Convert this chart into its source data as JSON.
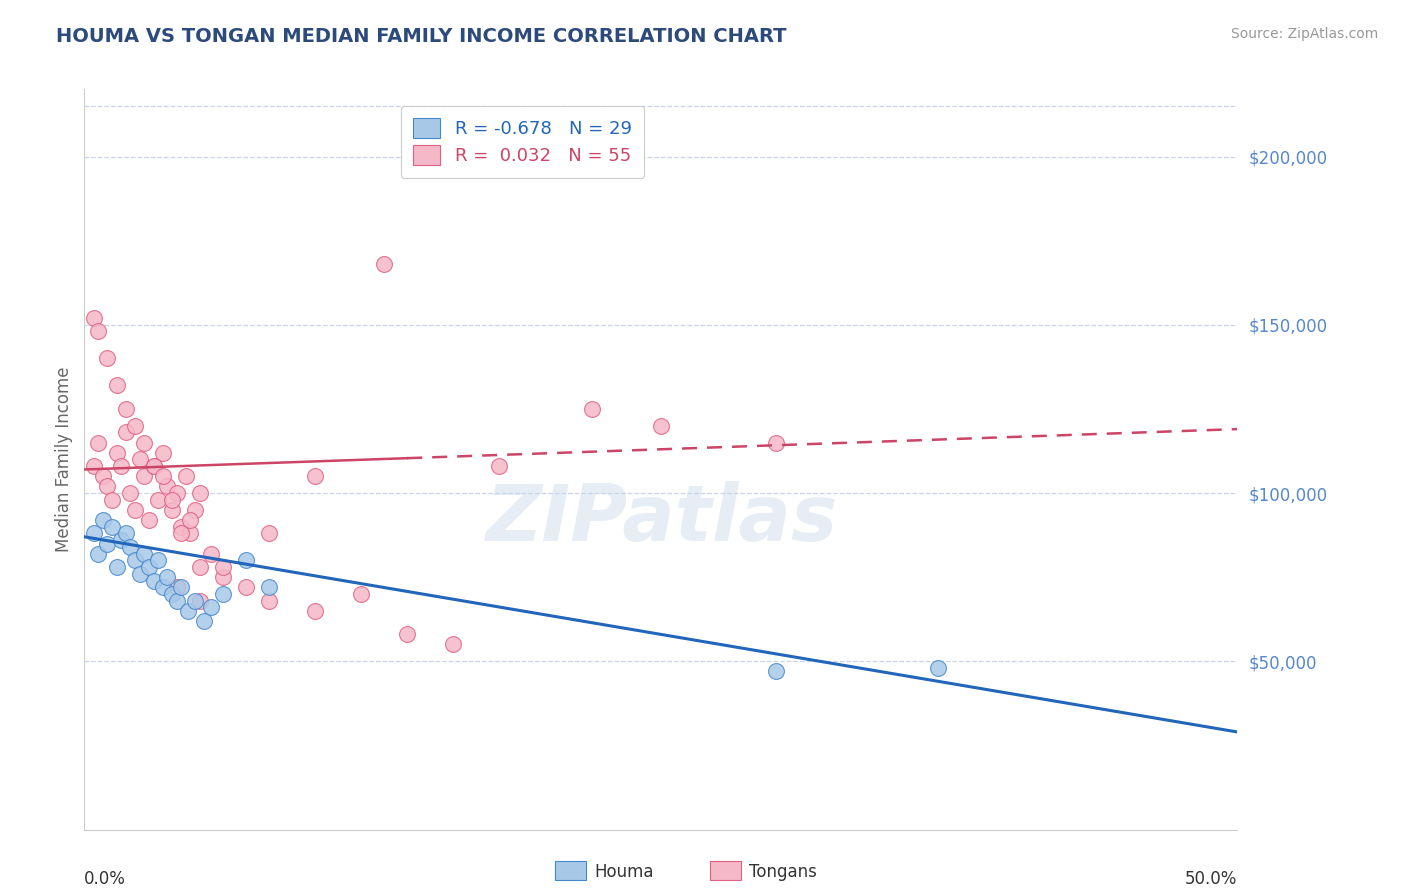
{
  "title": "HOUMA VS TONGAN MEDIAN FAMILY INCOME CORRELATION CHART",
  "source": "Source: ZipAtlas.com",
  "ylabel": "Median Family Income",
  "xlim": [
    0.0,
    0.5
  ],
  "ylim": [
    0,
    220000
  ],
  "legend_houma_R": "-0.678",
  "legend_houma_N": "29",
  "legend_tongan_R": "0.032",
  "legend_tongan_N": "55",
  "houma_color": "#a8c8e8",
  "tongan_color": "#f5b8c8",
  "houma_edge_color": "#4488cc",
  "tongan_edge_color": "#e06080",
  "houma_line_color": "#2266bb",
  "tongan_line_color": "#cc4466",
  "background_color": "#ffffff",
  "grid_color": "#c8d4e8",
  "watermark": "ZIPatlas",
  "title_color": "#2c4a7c",
  "ytick_color": "#5588cc",
  "houma_scatter_x": [
    0.004,
    0.006,
    0.008,
    0.01,
    0.012,
    0.014,
    0.016,
    0.018,
    0.02,
    0.022,
    0.024,
    0.026,
    0.028,
    0.03,
    0.032,
    0.034,
    0.036,
    0.038,
    0.04,
    0.042,
    0.045,
    0.048,
    0.052,
    0.055,
    0.06,
    0.07,
    0.08,
    0.3,
    0.37
  ],
  "houma_scatter_y": [
    88000,
    82000,
    92000,
    85000,
    90000,
    78000,
    86000,
    88000,
    84000,
    80000,
    76000,
    82000,
    78000,
    74000,
    80000,
    72000,
    75000,
    70000,
    68000,
    72000,
    65000,
    68000,
    62000,
    66000,
    70000,
    80000,
    72000,
    47000,
    48000
  ],
  "tongan_scatter_x": [
    0.004,
    0.006,
    0.008,
    0.01,
    0.012,
    0.014,
    0.016,
    0.018,
    0.02,
    0.022,
    0.024,
    0.026,
    0.028,
    0.03,
    0.032,
    0.034,
    0.036,
    0.038,
    0.04,
    0.042,
    0.044,
    0.046,
    0.048,
    0.05,
    0.004,
    0.006,
    0.01,
    0.014,
    0.018,
    0.022,
    0.026,
    0.03,
    0.034,
    0.038,
    0.042,
    0.046,
    0.05,
    0.055,
    0.06,
    0.07,
    0.08,
    0.1,
    0.12,
    0.14,
    0.16,
    0.25,
    0.3,
    0.22,
    0.18,
    0.1,
    0.08,
    0.06,
    0.05,
    0.04,
    0.13
  ],
  "tongan_scatter_y": [
    108000,
    115000,
    105000,
    102000,
    98000,
    112000,
    108000,
    118000,
    100000,
    95000,
    110000,
    105000,
    92000,
    108000,
    98000,
    112000,
    102000,
    95000,
    100000,
    90000,
    105000,
    88000,
    95000,
    100000,
    152000,
    148000,
    140000,
    132000,
    125000,
    120000,
    115000,
    108000,
    105000,
    98000,
    88000,
    92000,
    78000,
    82000,
    75000,
    72000,
    68000,
    65000,
    70000,
    58000,
    55000,
    120000,
    115000,
    125000,
    108000,
    105000,
    88000,
    78000,
    68000,
    72000,
    168000
  ]
}
